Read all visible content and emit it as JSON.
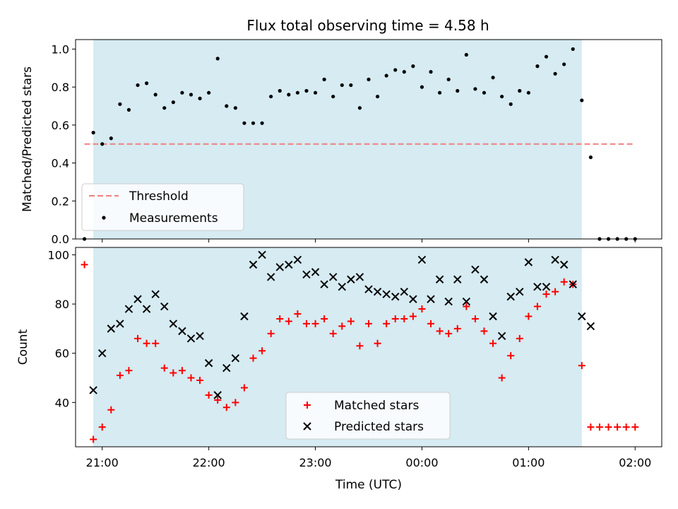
{
  "chart_data": [
    {
      "type": "scatter",
      "title": "Flux total observing time = 4.58 h",
      "xlabel": "",
      "ylabel": "Matched/Predicted stars",
      "xlim": [
        "20:45",
        "02:15"
      ],
      "ylim": [
        0,
        1.05
      ],
      "yticks": [
        "0.0",
        "0.2",
        "0.4",
        "0.6",
        "0.8",
        "1.0"
      ],
      "ytick_values": [
        0,
        0.2,
        0.4,
        0.6,
        0.8,
        1.0
      ],
      "observing_window": [
        "20:55",
        "01:30"
      ],
      "threshold": {
        "name": "Threshold",
        "value": 0.5,
        "x": [
          "20:50",
          "02:00"
        ],
        "color": "#f08080"
      },
      "legend": {
        "placement": "lower-left",
        "entries": [
          "Threshold",
          "Measurements"
        ]
      },
      "series": [
        {
          "name": "Measurements",
          "color": "#000000",
          "x": [
            "20:50",
            "20:55",
            "21:00",
            "21:05",
            "21:10",
            "21:15",
            "21:20",
            "21:25",
            "21:30",
            "21:35",
            "21:40",
            "21:45",
            "21:50",
            "21:55",
            "22:00",
            "22:05",
            "22:10",
            "22:15",
            "22:20",
            "22:25",
            "22:30",
            "22:35",
            "22:40",
            "22:45",
            "22:50",
            "22:55",
            "23:00",
            "23:05",
            "23:10",
            "23:15",
            "23:20",
            "23:25",
            "23:30",
            "23:35",
            "23:40",
            "23:45",
            "23:50",
            "23:55",
            "00:00",
            "00:05",
            "00:10",
            "00:15",
            "00:20",
            "00:25",
            "00:30",
            "00:35",
            "00:40",
            "00:45",
            "00:50",
            "00:55",
            "01:00",
            "01:05",
            "01:10",
            "01:15",
            "01:20",
            "01:25",
            "01:30",
            "01:35",
            "01:40",
            "01:45",
            "01:50",
            "01:55",
            "02:00"
          ],
          "y": [
            0.0,
            0.56,
            0.5,
            0.53,
            0.71,
            0.68,
            0.81,
            0.82,
            0.76,
            0.69,
            0.72,
            0.77,
            0.76,
            0.74,
            0.77,
            0.95,
            0.7,
            0.69,
            0.61,
            0.61,
            0.61,
            0.75,
            0.78,
            0.76,
            0.77,
            0.78,
            0.77,
            0.84,
            0.75,
            0.81,
            0.81,
            0.69,
            0.84,
            0.75,
            0.86,
            0.89,
            0.88,
            0.91,
            0.8,
            0.88,
            0.77,
            0.84,
            0.78,
            0.97,
            0.79,
            0.77,
            0.85,
            0.75,
            0.71,
            0.78,
            0.77,
            0.91,
            0.96,
            0.87,
            0.92,
            1.0,
            0.73,
            0.43,
            0.0,
            0.0,
            0.0,
            0.0,
            0.0
          ]
        }
      ]
    },
    {
      "type": "scatter",
      "title": "",
      "xlabel": "Time (UTC)",
      "ylabel": "Count",
      "xlim": [
        "20:45",
        "02:15"
      ],
      "ylim": [
        22,
        103
      ],
      "yticks": [
        "40",
        "60",
        "80",
        "100"
      ],
      "ytick_values": [
        40,
        60,
        80,
        100
      ],
      "xticks": [
        "21:00",
        "22:00",
        "23:00",
        "00:00",
        "01:00",
        "02:00"
      ],
      "observing_window": [
        "20:55",
        "01:30"
      ],
      "legend": {
        "placement": "lower-center",
        "entries": [
          "Matched stars",
          "Predicted stars"
        ]
      },
      "series": [
        {
          "name": "Matched stars",
          "marker": "plus",
          "color": "#ff0000",
          "x": [
            "20:50",
            "20:55",
            "21:00",
            "21:05",
            "21:10",
            "21:15",
            "21:20",
            "21:25",
            "21:30",
            "21:35",
            "21:40",
            "21:45",
            "21:50",
            "21:55",
            "22:00",
            "22:05",
            "22:10",
            "22:15",
            "22:20",
            "22:25",
            "22:30",
            "22:35",
            "22:40",
            "22:45",
            "22:50",
            "22:55",
            "23:00",
            "23:05",
            "23:10",
            "23:15",
            "23:20",
            "23:25",
            "23:30",
            "23:35",
            "23:40",
            "23:45",
            "23:50",
            "23:55",
            "00:00",
            "00:05",
            "00:10",
            "00:15",
            "00:20",
            "00:25",
            "00:30",
            "00:35",
            "00:40",
            "00:45",
            "00:50",
            "00:55",
            "01:00",
            "01:05",
            "01:10",
            "01:15",
            "01:20",
            "01:25",
            "01:30",
            "01:35",
            "01:40",
            "01:45",
            "01:50",
            "01:55",
            "02:00"
          ],
          "y": [
            96,
            25,
            30,
            37,
            51,
            53,
            66,
            64,
            64,
            54,
            52,
            53,
            50,
            49,
            43,
            41,
            38,
            40,
            46,
            58,
            61,
            68,
            74,
            73,
            76,
            72,
            72,
            74,
            68,
            71,
            73,
            63,
            72,
            64,
            72,
            74,
            74,
            75,
            78,
            72,
            69,
            68,
            70,
            79,
            74,
            69,
            64,
            50,
            59,
            66,
            75,
            79,
            84,
            85,
            89,
            88,
            55,
            30,
            30,
            30,
            30,
            30,
            30
          ]
        },
        {
          "name": "Predicted stars",
          "marker": "x",
          "color": "#000000",
          "x": [
            "20:55",
            "21:00",
            "21:05",
            "21:10",
            "21:15",
            "21:20",
            "21:25",
            "21:30",
            "21:35",
            "21:40",
            "21:45",
            "21:50",
            "21:55",
            "22:00",
            "22:05",
            "22:10",
            "22:15",
            "22:20",
            "22:25",
            "22:30",
            "22:35",
            "22:40",
            "22:45",
            "22:50",
            "22:55",
            "23:00",
            "23:05",
            "23:10",
            "23:15",
            "23:20",
            "23:25",
            "23:30",
            "23:35",
            "23:40",
            "23:45",
            "23:50",
            "23:55",
            "00:00",
            "00:05",
            "00:10",
            "00:15",
            "00:20",
            "00:25",
            "00:30",
            "00:35",
            "00:40",
            "00:45",
            "00:50",
            "00:55",
            "01:00",
            "01:05",
            "01:10",
            "01:15",
            "01:20",
            "01:25",
            "01:30",
            "01:35"
          ],
          "y": [
            45,
            60,
            70,
            72,
            78,
            82,
            78,
            84,
            79,
            72,
            69,
            66,
            67,
            56,
            43,
            54,
            58,
            75,
            96,
            100,
            91,
            95,
            96,
            98,
            92,
            93,
            88,
            91,
            87,
            90,
            91,
            86,
            85,
            84,
            83,
            85,
            82,
            98,
            82,
            90,
            81,
            90,
            81,
            94,
            90,
            75,
            67,
            83,
            85,
            97,
            87,
            87,
            98,
            96,
            88,
            75,
            71
          ]
        }
      ]
    }
  ]
}
